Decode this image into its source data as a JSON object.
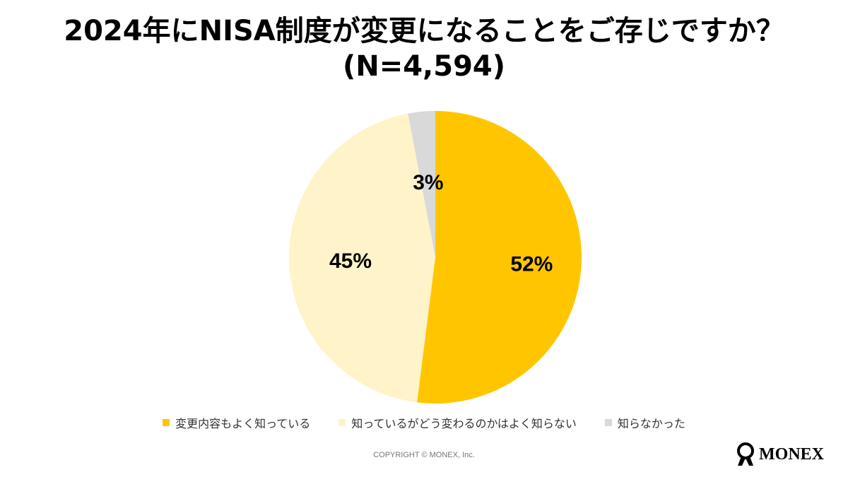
{
  "chart_data": {
    "type": "pie",
    "title": "2024年にNISA制度が変更になることをご存じですか？",
    "subtitle": "(N=4,594)",
    "start_angle": "12 o'clock",
    "direction": "clockwise",
    "slices": [
      {
        "label": "変更内容もよく知っている",
        "value": 52,
        "data_label": "52%",
        "color": "#FFC600"
      },
      {
        "label": "知っているがどう変わるのかはよく知らない",
        "value": 45,
        "data_label": "45%",
        "color": "#FFF3C9"
      },
      {
        "label": "知らなかった",
        "value": 3,
        "data_label": "3%",
        "color": "#D9D9D9"
      }
    ],
    "legend_position": "bottom"
  },
  "footer": {
    "copyright": "COPYRIGHT © MONEX, Inc.",
    "logo_text": "MONEX"
  }
}
